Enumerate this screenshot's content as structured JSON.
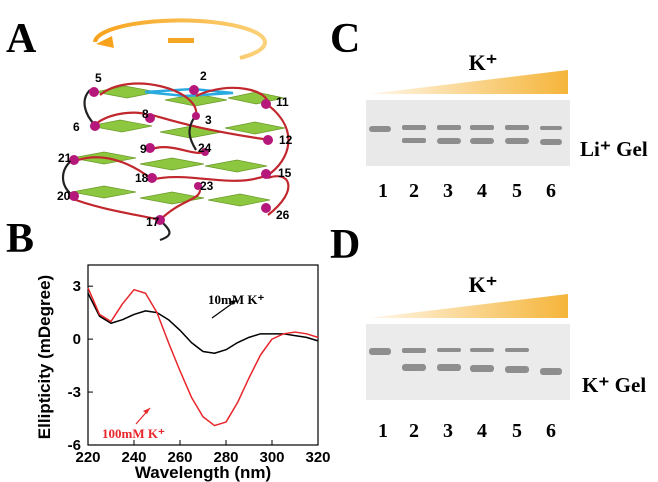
{
  "panel_labels": [
    "A",
    "B",
    "C",
    "D"
  ],
  "panel_a": {
    "labels": [
      "5",
      "2",
      "11",
      "8",
      "3",
      "6",
      "12",
      "9",
      "24",
      "21",
      "18",
      "15",
      "20",
      "23",
      "17",
      "26"
    ]
  },
  "chart_data": {
    "type": "line",
    "x_label": "Wavelength (nm)",
    "y_label": "Ellipticity (mDegree)",
    "x": [
      220,
      225,
      230,
      235,
      240,
      245,
      250,
      255,
      260,
      265,
      270,
      275,
      280,
      285,
      290,
      295,
      300,
      305,
      310,
      315,
      320
    ],
    "series": [
      {
        "name": "10mM K⁺",
        "color": "#000000",
        "values": [
          2.6,
          1.3,
          0.9,
          1.1,
          1.4,
          1.6,
          1.5,
          1.1,
          0.5,
          -0.2,
          -0.7,
          -0.8,
          -0.6,
          -0.2,
          0.1,
          0.3,
          0.3,
          0.3,
          0.2,
          0.1,
          -0.1
        ]
      },
      {
        "name": "100mM K⁺",
        "color": "#e8262b",
        "values": [
          2.9,
          1.4,
          1.0,
          2.0,
          2.8,
          2.6,
          1.5,
          -0.2,
          -1.8,
          -3.3,
          -4.4,
          -4.9,
          -4.7,
          -3.6,
          -2.2,
          -0.9,
          0.0,
          0.3,
          0.4,
          0.3,
          0.1
        ]
      }
    ],
    "xlim": [
      220,
      320
    ],
    "xticks": [
      220,
      240,
      260,
      280,
      300,
      320
    ],
    "ylim": [
      -6,
      4.2
    ],
    "yticks": [
      3,
      0,
      -3,
      -6
    ]
  },
  "gel_c": {
    "ion": "K⁺",
    "lanes": [
      "1",
      "2",
      "3",
      "4",
      "5",
      "6"
    ],
    "gel_label": "Li⁺ Gel"
  },
  "gel_d": {
    "ion": "K⁺",
    "lanes": [
      "1",
      "2",
      "3",
      "4",
      "5",
      "6"
    ],
    "gel_label": "K⁺ Gel"
  }
}
